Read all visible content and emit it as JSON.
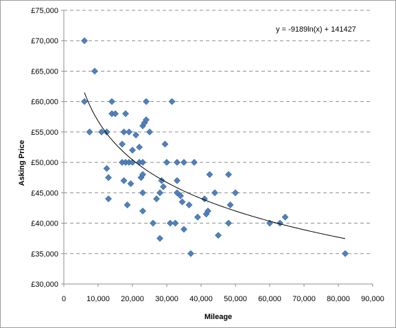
{
  "chart_data": {
    "type": "scatter",
    "xlabel": "Mileage",
    "ylabel": "Asking Price",
    "xlim": [
      0,
      90000
    ],
    "ylim": [
      30000,
      75000
    ],
    "x_ticks": [
      "0",
      "10,000",
      "20,000",
      "30,000",
      "40,000",
      "50,000",
      "60,000",
      "70,000",
      "80,000",
      "90,000"
    ],
    "y_ticks": [
      "£30,000",
      "£35,000",
      "£40,000",
      "£45,000",
      "£50,000",
      "£55,000",
      "£60,000",
      "£65,000",
      "£70,000",
      "£75,000"
    ],
    "grid": "horizontal dashed",
    "marker": "diamond",
    "marker_color": "#4f81bd",
    "trendline": {
      "type": "logarithmic",
      "equation": "y = -9189ln(x) + 141427",
      "a": -9189,
      "b": 141427,
      "x_range": [
        6000,
        82000
      ],
      "color": "#000000"
    },
    "points": [
      {
        "x": 6000,
        "y": 70000
      },
      {
        "x": 9000,
        "y": 65000
      },
      {
        "x": 6000,
        "y": 60000
      },
      {
        "x": 7500,
        "y": 55000
      },
      {
        "x": 11000,
        "y": 55000
      },
      {
        "x": 12500,
        "y": 55000
      },
      {
        "x": 14000,
        "y": 60000
      },
      {
        "x": 14000,
        "y": 58000
      },
      {
        "x": 15000,
        "y": 58000
      },
      {
        "x": 18000,
        "y": 58000
      },
      {
        "x": 17500,
        "y": 55000
      },
      {
        "x": 19000,
        "y": 55000
      },
      {
        "x": 17000,
        "y": 53000
      },
      {
        "x": 20000,
        "y": 52000
      },
      {
        "x": 22000,
        "y": 52500
      },
      {
        "x": 21000,
        "y": 54500
      },
      {
        "x": 23000,
        "y": 56000
      },
      {
        "x": 23500,
        "y": 56500
      },
      {
        "x": 24000,
        "y": 57000
      },
      {
        "x": 24000,
        "y": 60000
      },
      {
        "x": 25000,
        "y": 55000
      },
      {
        "x": 31500,
        "y": 60000
      },
      {
        "x": 12500,
        "y": 49000
      },
      {
        "x": 13000,
        "y": 47500
      },
      {
        "x": 13000,
        "y": 44000
      },
      {
        "x": 17000,
        "y": 50000
      },
      {
        "x": 18000,
        "y": 50000
      },
      {
        "x": 19000,
        "y": 50000
      },
      {
        "x": 20000,
        "y": 50000
      },
      {
        "x": 22000,
        "y": 50000
      },
      {
        "x": 23000,
        "y": 50000
      },
      {
        "x": 17500,
        "y": 47000
      },
      {
        "x": 19500,
        "y": 46500
      },
      {
        "x": 22500,
        "y": 47500
      },
      {
        "x": 23000,
        "y": 48000
      },
      {
        "x": 23000,
        "y": 45000
      },
      {
        "x": 18500,
        "y": 43000
      },
      {
        "x": 23000,
        "y": 42000
      },
      {
        "x": 27000,
        "y": 44000
      },
      {
        "x": 28000,
        "y": 45000
      },
      {
        "x": 28500,
        "y": 47000
      },
      {
        "x": 29000,
        "y": 46000
      },
      {
        "x": 29500,
        "y": 53000
      },
      {
        "x": 30000,
        "y": 50000
      },
      {
        "x": 33000,
        "y": 50000
      },
      {
        "x": 35000,
        "y": 50000
      },
      {
        "x": 38000,
        "y": 50000
      },
      {
        "x": 33000,
        "y": 47000
      },
      {
        "x": 33000,
        "y": 45000
      },
      {
        "x": 34000,
        "y": 44500
      },
      {
        "x": 34500,
        "y": 43500
      },
      {
        "x": 36500,
        "y": 43000
      },
      {
        "x": 26000,
        "y": 40000
      },
      {
        "x": 31000,
        "y": 40000
      },
      {
        "x": 32500,
        "y": 40000
      },
      {
        "x": 28000,
        "y": 37500
      },
      {
        "x": 35000,
        "y": 39000
      },
      {
        "x": 37000,
        "y": 35000
      },
      {
        "x": 39000,
        "y": 41000
      },
      {
        "x": 41000,
        "y": 44000
      },
      {
        "x": 41500,
        "y": 41500
      },
      {
        "x": 42000,
        "y": 42000
      },
      {
        "x": 42500,
        "y": 48000
      },
      {
        "x": 44000,
        "y": 45000
      },
      {
        "x": 45000,
        "y": 38000
      },
      {
        "x": 48000,
        "y": 48000
      },
      {
        "x": 48500,
        "y": 43000
      },
      {
        "x": 48000,
        "y": 40000
      },
      {
        "x": 50000,
        "y": 45000
      },
      {
        "x": 60000,
        "y": 40000
      },
      {
        "x": 63000,
        "y": 40000
      },
      {
        "x": 64500,
        "y": 41000
      },
      {
        "x": 82000,
        "y": 35000
      }
    ]
  }
}
